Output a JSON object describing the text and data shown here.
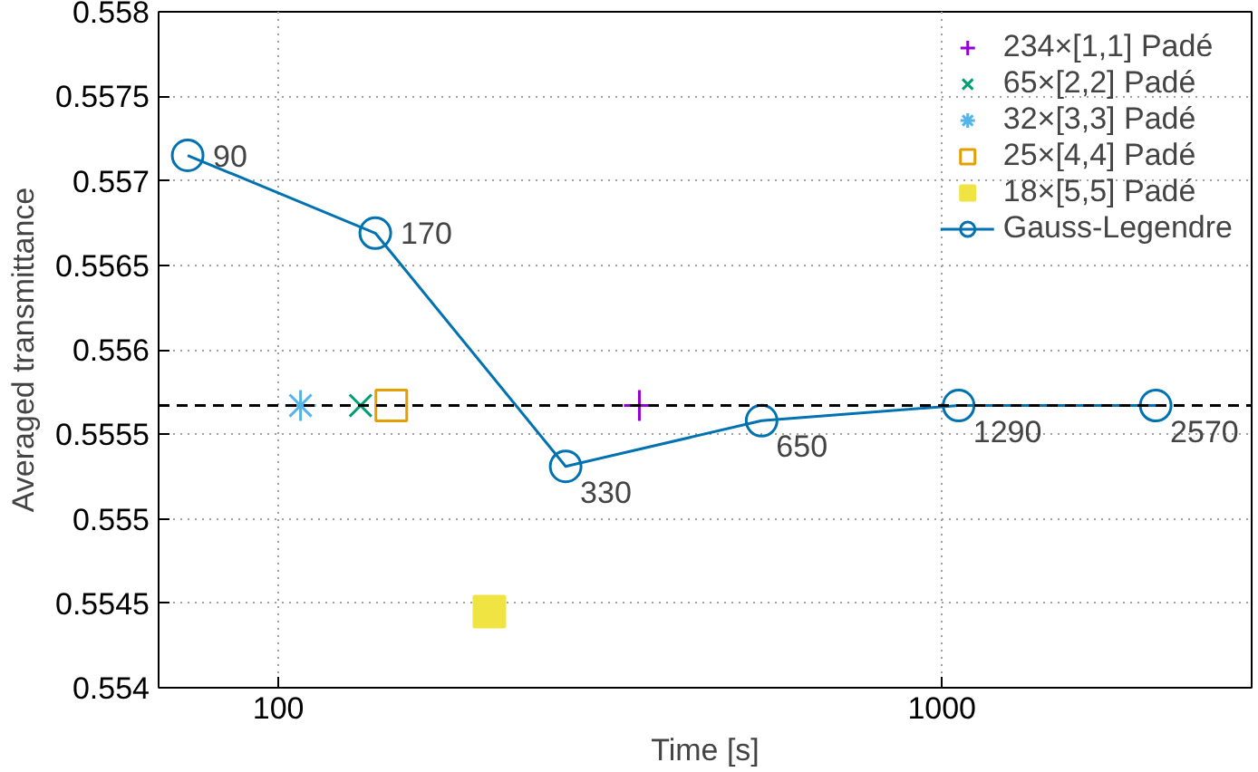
{
  "chart_data": {
    "type": "scatter",
    "xlabel": "Time [s]",
    "ylabel": "Averaged transmittance",
    "log": "x",
    "xlim": [
      66,
      2930
    ],
    "xticks": [
      100,
      1000
    ],
    "ylim": [
      0.554,
      0.558
    ],
    "yticks": [
      0.554,
      0.5545,
      0.555,
      0.5555,
      0.556,
      0.5565,
      0.557,
      0.5575,
      0.558
    ],
    "grid": true,
    "legend": "top right",
    "series": [
      {
        "name": "234×[1,1] Padé",
        "marker": "plus",
        "color": "#9400d3",
        "x": [
          350
        ],
        "values": [
          0.55567
        ]
      },
      {
        "name": "65×[2,2] Padé",
        "marker": "x",
        "color": "#009e73",
        "x": [
          133
        ],
        "values": [
          0.55567
        ]
      },
      {
        "name": "32×[3,3] Padé",
        "marker": "cross",
        "color": "#56b4e9",
        "x": [
          108
        ],
        "values": [
          0.55567
        ]
      },
      {
        "name": "25×[4,4] Padé",
        "marker": "square_open",
        "color": "#e69f00",
        "x": [
          148
        ],
        "values": [
          0.55567
        ]
      },
      {
        "name": "18×[5,5] Padé",
        "marker": "square",
        "color": "#f0e442",
        "x": [
          208
        ],
        "values": [
          0.55445
        ]
      },
      {
        "name": "Gauss-Legendre",
        "type": "line",
        "marker": "circle_open",
        "color": "#0072b2",
        "x": [
          73,
          140,
          271,
          535,
          1060,
          2100
        ],
        "values": [
          0.55715,
          0.55669,
          0.55531,
          0.55558,
          0.55567,
          0.55567
        ]
      }
    ],
    "ref_lines": [
      {
        "axis": "y",
        "value": 0.55567,
        "color": "#000000",
        "line_style": "dashed"
      }
    ],
    "annotations": [
      {
        "text": "90",
        "x": 73,
        "y": 0.55715
      },
      {
        "text": "170",
        "x": 140,
        "y": 0.55669
      },
      {
        "text": "330",
        "x": 271,
        "y": 0.55531
      },
      {
        "text": "650",
        "x": 535,
        "y": 0.55558
      },
      {
        "text": "1290",
        "x": 1060,
        "y": 0.55567
      },
      {
        "text": "2570",
        "x": 2100,
        "y": 0.55567
      }
    ]
  }
}
